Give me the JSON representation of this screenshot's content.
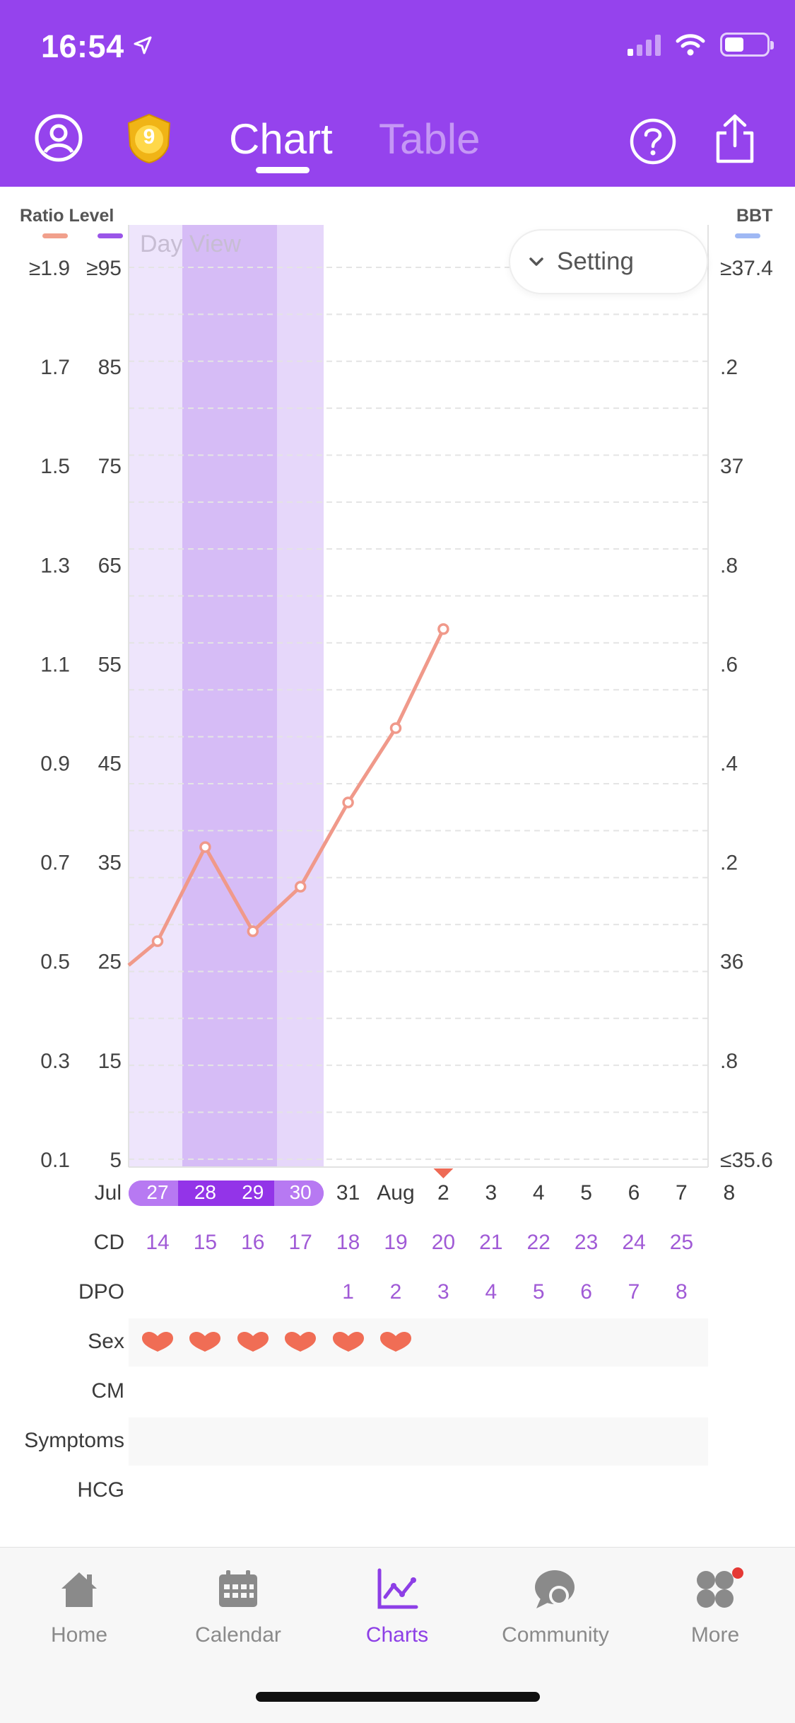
{
  "status_bar": {
    "time": "16:54"
  },
  "header": {
    "badge_number": "9",
    "tabs": [
      {
        "label": "Chart",
        "active": true
      },
      {
        "label": "Table",
        "active": false
      }
    ]
  },
  "chart": {
    "left_header": "Ratio Level",
    "right_header": "BBT",
    "day_view_label": "Day View",
    "setting_label": "Setting",
    "colors": {
      "ratio": "#f1a08c",
      "level": "#9a55e8",
      "bbt": "#9fb8f4",
      "band_light": "#ece3fb",
      "band_dark": "#d4b8f6"
    }
  },
  "chart_data": {
    "type": "line",
    "series": [
      {
        "name": "Ratio",
        "color": "#f0998a"
      }
    ],
    "x": [
      "Jul 27",
      "Jul 28",
      "Jul 29",
      "Jul 30",
      "Jul 31",
      "Aug 1",
      "Aug 2"
    ],
    "values": [
      0.54,
      0.73,
      0.56,
      0.65,
      0.82,
      0.97,
      1.17
    ],
    "y_ratio_ticks": [
      "≥1.9",
      "1.7",
      "1.5",
      "1.3",
      "1.1",
      "0.9",
      "0.7",
      "0.5",
      "0.3",
      "0.1"
    ],
    "y_level_ticks": [
      "≥95",
      "85",
      "75",
      "65",
      "55",
      "45",
      "35",
      "25",
      "15",
      "5"
    ],
    "y_bbt_ticks": [
      "≥37.4",
      ".2",
      "37",
      ".8",
      ".6",
      ".4",
      ".2",
      "36",
      ".8",
      "≤35.6"
    ],
    "ylim": [
      0.1,
      1.9
    ]
  },
  "days": {
    "month_labels": [
      "Jul",
      "Aug"
    ],
    "dates": [
      "27",
      "28",
      "29",
      "30",
      "31",
      "Aug",
      "2",
      "3",
      "4",
      "5",
      "6",
      "7",
      "8"
    ],
    "fertile_dates": [
      0,
      1,
      2,
      3
    ]
  },
  "rows": {
    "cd": {
      "label": "CD",
      "values": [
        "14",
        "15",
        "16",
        "17",
        "18",
        "19",
        "20",
        "21",
        "22",
        "23",
        "24",
        "25"
      ]
    },
    "dpo": {
      "label": "DPO",
      "values": [
        "",
        "",
        "",
        "",
        "1",
        "2",
        "3",
        "4",
        "5",
        "6",
        "7",
        "8"
      ]
    },
    "sex": {
      "label": "Sex",
      "hearts": 6
    },
    "cm": {
      "label": "CM"
    },
    "symptoms": {
      "label": "Symptoms"
    },
    "hcg": {
      "label": "HCG"
    }
  },
  "tabbar": {
    "items": [
      {
        "label": "Home",
        "icon": "home-icon"
      },
      {
        "label": "Calendar",
        "icon": "calendar-icon"
      },
      {
        "label": "Charts",
        "icon": "charts-icon",
        "active": true
      },
      {
        "label": "Community",
        "icon": "community-icon"
      },
      {
        "label": "More",
        "icon": "more-icon",
        "notification": true
      }
    ]
  }
}
